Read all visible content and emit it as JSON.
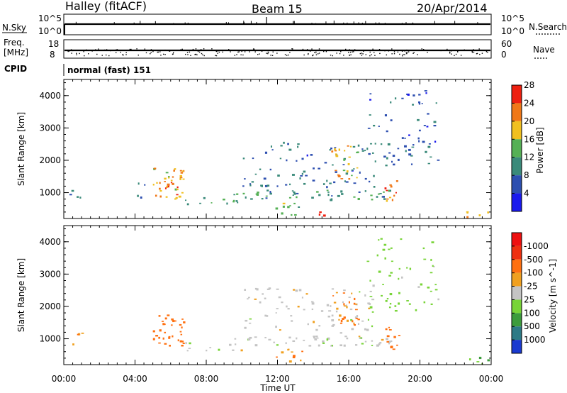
{
  "header": {
    "station": "Halley (fitACF)",
    "beam": "Beam 15",
    "date": "20/Apr/2014"
  },
  "strips": {
    "nsky_label": "N.Sky",
    "nsky_ticks": [
      "10^5",
      "10^0"
    ],
    "nsearch_label": "N.Search",
    "freq_label_line1": "Freq.",
    "freq_label_line2": "[MHz]",
    "freq_ticks": [
      "18",
      "8"
    ],
    "nave_label": "Nave",
    "nave_ticks": [
      "60",
      "0"
    ],
    "cpid_label": "CPID",
    "cpid_text": "normal (fast) 151"
  },
  "axes": {
    "ylabel": "Slant Range [km]",
    "xlabel": "Time UT",
    "y_ticks": [
      "1000",
      "2000",
      "3000",
      "4000"
    ],
    "x_ticks": [
      "00:00",
      "04:00",
      "08:00",
      "12:00",
      "16:00",
      "20:00",
      "00:00"
    ]
  },
  "colorbars": {
    "power": {
      "label": "Power [dB]",
      "ticks": [
        "4",
        "8",
        "12",
        "16",
        "20",
        "24",
        "28"
      ],
      "colors": [
        "#1a1aee",
        "#2d4fb0",
        "#3a8a7a",
        "#55b055",
        "#f0c020",
        "#f07818",
        "#ee2010"
      ]
    },
    "velocity": {
      "label": "Velocity [m s^-1]",
      "ticks": [
        "1000",
        "500",
        "100",
        "25",
        "-25",
        "-100",
        "-500",
        "-1000"
      ],
      "colors": [
        "#1a3ad0",
        "#2d7a86",
        "#3c9c3c",
        "#78d438",
        "#c4c4c4",
        "#f0a020",
        "#ff7010",
        "#ee3010",
        "#ee1010"
      ]
    }
  },
  "chart_data": [
    {
      "type": "heatmap",
      "title": "Power",
      "xlabel": "Time UT",
      "ylabel": "Slant Range [km]",
      "xlim": [
        "00:00",
        "24:00"
      ],
      "ylim": [
        200,
        4500
      ],
      "colorbar": {
        "label": "Power [dB]",
        "range": [
          0,
          30
        ]
      },
      "patches": [
        {
          "t_start": 0.3,
          "t_end": 1.0,
          "r_min": 800,
          "r_max": 1300,
          "level": 8,
          "density": 0.5
        },
        {
          "t_start": 3.5,
          "t_end": 4.5,
          "r_min": 800,
          "r_max": 1400,
          "level": 8,
          "density": 0.3
        },
        {
          "t_start": 5.0,
          "t_end": 6.7,
          "r_min": 800,
          "r_max": 1800,
          "level": 20,
          "density": 0.9
        },
        {
          "t_start": 5.6,
          "t_end": 6.4,
          "r_min": 950,
          "r_max": 1400,
          "level": 28,
          "density": 0.9
        },
        {
          "t_start": 6.7,
          "t_end": 10.0,
          "r_min": 650,
          "r_max": 900,
          "level": 12,
          "density": 0.6
        },
        {
          "t_start": 9.5,
          "t_end": 18.5,
          "r_min": 800,
          "r_max": 1100,
          "level": 12,
          "density": 0.8
        },
        {
          "t_start": 11.8,
          "t_end": 13.5,
          "r_min": 300,
          "r_max": 700,
          "level": 16,
          "density": 0.7
        },
        {
          "t_start": 14.1,
          "t_end": 14.6,
          "r_min": 300,
          "r_max": 600,
          "level": 28,
          "density": 0.9
        },
        {
          "t_start": 10.0,
          "t_end": 17.5,
          "r_min": 1200,
          "r_max": 2600,
          "level": 8,
          "density": 0.35
        },
        {
          "t_start": 15.0,
          "t_end": 16.5,
          "r_min": 1400,
          "r_max": 2500,
          "level": 20,
          "density": 0.7
        },
        {
          "t_start": 17.0,
          "t_end": 21.0,
          "r_min": 1800,
          "r_max": 4200,
          "level": 8,
          "density": 0.3
        },
        {
          "t_start": 18.0,
          "t_end": 18.8,
          "r_min": 600,
          "r_max": 1500,
          "level": 24,
          "density": 0.7
        },
        {
          "t_start": 22.5,
          "t_end": 23.8,
          "r_min": 250,
          "r_max": 450,
          "level": 20,
          "density": 0.8
        }
      ]
    },
    {
      "type": "heatmap",
      "title": "Velocity",
      "xlabel": "Time UT",
      "ylabel": "Slant Range [km]",
      "xlim": [
        "00:00",
        "24:00"
      ],
      "ylim": [
        200,
        4500
      ],
      "colorbar": {
        "label": "Velocity [m s^-1]",
        "range": [
          -1000,
          1000
        ]
      },
      "patches": [
        {
          "t_start": 0.3,
          "t_end": 1.0,
          "r_min": 800,
          "r_max": 1300,
          "level": -100,
          "density": 0.5
        },
        {
          "t_start": 5.0,
          "t_end": 6.7,
          "r_min": 800,
          "r_max": 1800,
          "level": -300,
          "density": 0.9
        },
        {
          "t_start": 6.7,
          "t_end": 10.0,
          "r_min": 650,
          "r_max": 900,
          "level": 0,
          "density": 0.6
        },
        {
          "t_start": 9.5,
          "t_end": 18.5,
          "r_min": 800,
          "r_max": 1100,
          "level": 0,
          "density": 0.8
        },
        {
          "t_start": 11.8,
          "t_end": 13.5,
          "r_min": 300,
          "r_max": 700,
          "level": -100,
          "density": 0.7
        },
        {
          "t_start": 10.0,
          "t_end": 17.5,
          "r_min": 1200,
          "r_max": 2600,
          "level": 0,
          "density": 0.35
        },
        {
          "t_start": 15.0,
          "t_end": 16.5,
          "r_min": 1400,
          "r_max": 2500,
          "level": -100,
          "density": 0.7
        },
        {
          "t_start": 17.0,
          "t_end": 21.0,
          "r_min": 1800,
          "r_max": 4200,
          "level": 50,
          "density": 0.25
        },
        {
          "t_start": 18.0,
          "t_end": 18.8,
          "r_min": 600,
          "r_max": 1500,
          "level": -200,
          "density": 0.7
        },
        {
          "t_start": 22.5,
          "t_end": 23.8,
          "r_min": 250,
          "r_max": 450,
          "level": 100,
          "density": 0.8
        }
      ]
    }
  ]
}
